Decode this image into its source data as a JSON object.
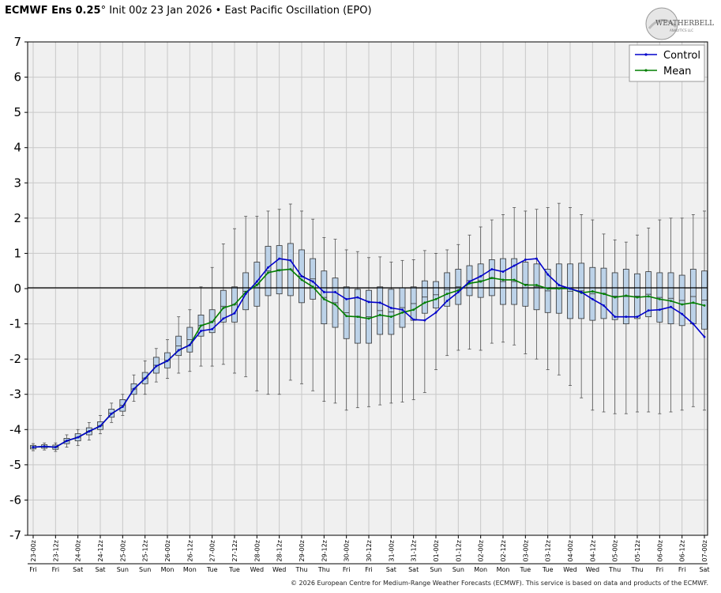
{
  "header": {
    "model": "ECMWF Ens 0.25",
    "degree": "°",
    "rest": " Init 00z 23 Jan 2026 • East Pacific Oscillation (EPO)"
  },
  "logo": {
    "text1": "WEATHERBELL",
    "text2": "ANALYTICS LLC"
  },
  "copyright": "© 2026 European Centre for Medium-Range Weather Forecasts (ECMWF). This service is based on data and products of the ECMWF.",
  "colors": {
    "control": "#0000cc",
    "mean": "#007f00",
    "box": "#bcd2e8",
    "zero": "#000000"
  },
  "chart_data": {
    "type": "box",
    "ylim": [
      -7,
      7
    ],
    "yticks": [
      7,
      6,
      5,
      4,
      3,
      2,
      1,
      0,
      -1,
      -2,
      -3,
      -4,
      -5,
      -6,
      -7
    ],
    "legend": {
      "position": "top-right",
      "entries": [
        "Control",
        "Mean"
      ]
    },
    "x_date_labels": [
      "23-00z",
      "23-12z",
      "24-00z",
      "24-12z",
      "25-00z",
      "25-12z",
      "26-00z",
      "26-12z",
      "27-00z",
      "27-12z",
      "28-00z",
      "28-12z",
      "29-00z",
      "29-12z",
      "30-00z",
      "30-12z",
      "31-00z",
      "31-12z",
      "01-00z",
      "01-12z",
      "02-00z",
      "02-12z",
      "03-00z",
      "03-12z",
      "04-00z",
      "04-12z",
      "05-00z",
      "05-12z",
      "06-00z",
      "06-12z",
      "07-00z"
    ],
    "x_day_labels": [
      "Fri",
      "Fri",
      "Sat",
      "Sat",
      "Sun",
      "Sun",
      "Mon",
      "Mon",
      "Tue",
      "Tue",
      "Wed",
      "Wed",
      "Thu",
      "Thu",
      "Fri",
      "Fri",
      "Sat",
      "Sat",
      "Sun",
      "Sun",
      "Mon",
      "Mon",
      "Tue",
      "Tue",
      "Wed",
      "Wed",
      "Thu",
      "Thu",
      "Fri",
      "Fri",
      "Sat"
    ],
    "series": [
      {
        "name": "Control",
        "values": [
          -4.5,
          -4.48,
          -4.5,
          -4.32,
          -4.22,
          -4.05,
          -3.9,
          -3.55,
          -3.35,
          -2.85,
          -2.55,
          -2.2,
          -2.05,
          -1.75,
          -1.6,
          -1.2,
          -1.15,
          -0.85,
          -0.7,
          -0.15,
          0.2,
          0.6,
          0.85,
          0.8,
          0.35,
          0.2,
          -0.1,
          -0.1,
          -0.3,
          -0.25,
          -0.38,
          -0.4,
          -0.55,
          -0.6,
          -0.88,
          -0.9,
          -0.68,
          -0.35,
          -0.1,
          0.2,
          0.35,
          0.55,
          0.48,
          0.65,
          0.82,
          0.85,
          0.4,
          0.1,
          0.0,
          -0.1,
          -0.3,
          -0.48,
          -0.8,
          -0.8,
          -0.8,
          -0.62,
          -0.6,
          -0.52,
          -0.72,
          -1.0,
          -1.37
        ]
      },
      {
        "name": "Mean",
        "values": [
          -4.5,
          -4.48,
          -4.5,
          -4.32,
          -4.22,
          -4.05,
          -3.9,
          -3.55,
          -3.35,
          -2.85,
          -2.55,
          -2.2,
          -2.05,
          -1.75,
          -1.6,
          -1.05,
          -0.95,
          -0.55,
          -0.45,
          -0.1,
          0.1,
          0.45,
          0.52,
          0.55,
          0.25,
          0.05,
          -0.3,
          -0.45,
          -0.78,
          -0.8,
          -0.85,
          -0.75,
          -0.8,
          -0.68,
          -0.6,
          -0.4,
          -0.3,
          -0.15,
          -0.05,
          0.15,
          0.2,
          0.3,
          0.25,
          0.25,
          0.1,
          0.1,
          0.0,
          0.0,
          0.0,
          -0.12,
          -0.08,
          -0.15,
          -0.25,
          -0.2,
          -0.25,
          -0.22,
          -0.3,
          -0.35,
          -0.45,
          -0.4,
          -0.48
        ]
      }
    ],
    "boxes": [
      {
        "q1": -4.55,
        "q3": -4.45,
        "min": -4.6,
        "max": -4.4
      },
      {
        "q1": -4.53,
        "q3": -4.43,
        "min": -4.58,
        "max": -4.38
      },
      {
        "q1": -4.56,
        "q3": -4.44,
        "min": -4.62,
        "max": -4.38
      },
      {
        "q1": -4.4,
        "q3": -4.25,
        "min": -4.5,
        "max": -4.15
      },
      {
        "q1": -4.32,
        "q3": -4.12,
        "min": -4.45,
        "max": -4.0
      },
      {
        "q1": -4.15,
        "q3": -3.95,
        "min": -4.3,
        "max": -3.8
      },
      {
        "q1": -4.0,
        "q3": -3.78,
        "min": -4.12,
        "max": -3.6
      },
      {
        "q1": -3.65,
        "q3": -3.42,
        "min": -3.8,
        "max": -3.25
      },
      {
        "q1": -3.48,
        "q3": -3.15,
        "min": -3.6,
        "max": -3.0
      },
      {
        "q1": -3.0,
        "q3": -2.7,
        "min": -3.2,
        "max": -2.45
      },
      {
        "q1": -2.7,
        "q3": -2.38,
        "min": -3.0,
        "max": -2.05
      },
      {
        "q1": -2.4,
        "q3": -1.95,
        "min": -2.65,
        "max": -1.7
      },
      {
        "q1": -2.25,
        "q3": -1.82,
        "min": -2.55,
        "max": -1.45
      },
      {
        "q1": -1.9,
        "q3": -1.35,
        "min": -2.4,
        "max": -0.8
      },
      {
        "q1": -1.8,
        "q3": -1.1,
        "min": -2.35,
        "max": -0.6
      },
      {
        "q1": -1.35,
        "q3": -0.75,
        "min": -2.2,
        "max": 0.05
      },
      {
        "q1": -1.25,
        "q3": -0.6,
        "min": -2.2,
        "max": 0.6
      },
      {
        "q1": -0.95,
        "q3": -0.05,
        "min": -2.15,
        "max": 1.27
      },
      {
        "q1": -0.95,
        "q3": 0.05,
        "min": -2.4,
        "max": 1.7
      },
      {
        "q1": -0.6,
        "q3": 0.45,
        "min": -2.5,
        "max": 2.05
      },
      {
        "q1": -0.5,
        "q3": 0.75,
        "min": -2.9,
        "max": 2.05
      },
      {
        "q1": -0.2,
        "q3": 1.2,
        "min": -3.0,
        "max": 2.2
      },
      {
        "q1": -0.15,
        "q3": 1.22,
        "min": -3.0,
        "max": 2.25
      },
      {
        "q1": -0.2,
        "q3": 1.28,
        "min": -2.6,
        "max": 2.4
      },
      {
        "q1": -0.4,
        "q3": 1.1,
        "min": -2.7,
        "max": 2.2
      },
      {
        "q1": -0.3,
        "q3": 0.85,
        "min": -2.9,
        "max": 1.97
      },
      {
        "q1": -1.0,
        "q3": 0.5,
        "min": -3.2,
        "max": 1.45
      },
      {
        "q1": -1.1,
        "q3": 0.3,
        "min": -3.25,
        "max": 1.4
      },
      {
        "q1": -1.42,
        "q3": 0.05,
        "min": -3.45,
        "max": 1.1
      },
      {
        "q1": -1.55,
        "q3": -0.02,
        "min": -3.38,
        "max": 1.05
      },
      {
        "q1": -1.55,
        "q3": -0.05,
        "min": -3.35,
        "max": 0.88
      },
      {
        "q1": -1.3,
        "q3": 0.05,
        "min": -3.3,
        "max": 0.9
      },
      {
        "q1": -1.3,
        "q3": -0.02,
        "min": -3.25,
        "max": 0.75
      },
      {
        "q1": -1.1,
        "q3": 0.02,
        "min": -3.22,
        "max": 0.8
      },
      {
        "q1": -0.9,
        "q3": 0.05,
        "min": -3.15,
        "max": 0.82
      },
      {
        "q1": -0.7,
        "q3": 0.22,
        "min": -2.95,
        "max": 1.08
      },
      {
        "q1": -0.55,
        "q3": 0.2,
        "min": -2.3,
        "max": 1.0
      },
      {
        "q1": -0.5,
        "q3": 0.45,
        "min": -1.9,
        "max": 1.1
      },
      {
        "q1": -0.45,
        "q3": 0.55,
        "min": -1.75,
        "max": 1.25
      },
      {
        "q1": -0.2,
        "q3": 0.65,
        "min": -1.72,
        "max": 1.52
      },
      {
        "q1": -0.25,
        "q3": 0.7,
        "min": -1.75,
        "max": 1.75
      },
      {
        "q1": -0.2,
        "q3": 0.82,
        "min": -1.55,
        "max": 1.95
      },
      {
        "q1": -0.45,
        "q3": 0.85,
        "min": -1.52,
        "max": 2.1
      },
      {
        "q1": -0.45,
        "q3": 0.85,
        "min": -1.6,
        "max": 2.3
      },
      {
        "q1": -0.5,
        "q3": 0.75,
        "min": -1.85,
        "max": 2.2
      },
      {
        "q1": -0.6,
        "q3": 0.7,
        "min": -2.0,
        "max": 2.25
      },
      {
        "q1": -0.68,
        "q3": 0.55,
        "min": -2.3,
        "max": 2.3
      },
      {
        "q1": -0.7,
        "q3": 0.7,
        "min": -2.45,
        "max": 2.42
      },
      {
        "q1": -0.85,
        "q3": 0.7,
        "min": -2.75,
        "max": 2.3
      },
      {
        "q1": -0.85,
        "q3": 0.72,
        "min": -3.1,
        "max": 2.1
      },
      {
        "q1": -0.9,
        "q3": 0.6,
        "min": -3.45,
        "max": 1.95
      },
      {
        "q1": -0.85,
        "q3": 0.58,
        "min": -3.5,
        "max": 1.55
      },
      {
        "q1": -0.88,
        "q3": 0.45,
        "min": -3.55,
        "max": 1.38
      },
      {
        "q1": -1.0,
        "q3": 0.55,
        "min": -3.55,
        "max": 1.32
      },
      {
        "q1": -0.85,
        "q3": 0.42,
        "min": -3.5,
        "max": 1.52
      },
      {
        "q1": -0.8,
        "q3": 0.48,
        "min": -3.5,
        "max": 1.72
      },
      {
        "q1": -0.95,
        "q3": 0.45,
        "min": -3.55,
        "max": 1.95
      },
      {
        "q1": -1.0,
        "q3": 0.45,
        "min": -3.5,
        "max": 2.0
      },
      {
        "q1": -1.05,
        "q3": 0.38,
        "min": -3.45,
        "max": 2.0
      },
      {
        "q1": -1.0,
        "q3": 0.55,
        "min": -3.35,
        "max": 2.1
      },
      {
        "q1": -1.15,
        "q3": 0.5,
        "min": -3.45,
        "max": 2.2
      }
    ]
  }
}
